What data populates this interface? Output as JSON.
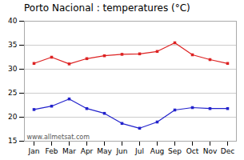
{
  "chart_data": {
    "type": "line",
    "title": "Porto Nacional : temperatures (°C)",
    "categories": [
      "Jan",
      "Feb",
      "Mar",
      "Apr",
      "May",
      "Jun",
      "Jul",
      "Aug",
      "Sep",
      "Oct",
      "Nov",
      "Dec"
    ],
    "series": [
      {
        "color": "#dd2222",
        "values": [
          31.2,
          32.5,
          31.1,
          32.2,
          32.8,
          33.1,
          33.2,
          33.7,
          35.5,
          33.0,
          32.0,
          31.2
        ]
      },
      {
        "color": "#2222cc",
        "values": [
          21.6,
          22.3,
          23.8,
          21.8,
          20.8,
          18.7,
          17.7,
          19.0,
          21.5,
          22.0,
          21.8,
          21.8
        ]
      }
    ],
    "ylim": [
      15,
      40
    ],
    "yticks": [
      15,
      20,
      25,
      30,
      35,
      40
    ],
    "grid": true,
    "marker": "square",
    "line_style": "solid",
    "annotation": "www.allmetsat.com"
  }
}
